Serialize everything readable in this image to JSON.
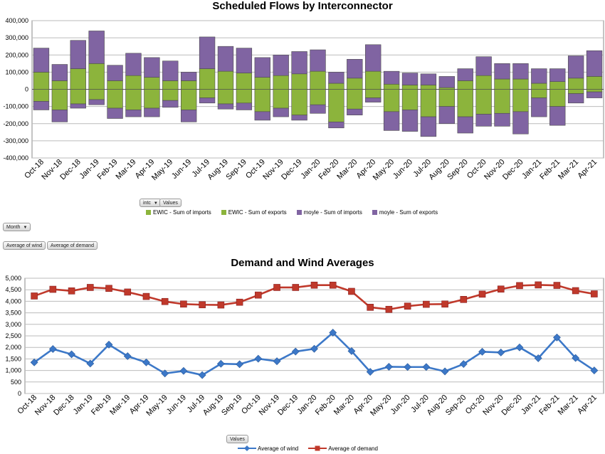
{
  "charts": {
    "flows": {
      "title": "Scheduled Flows by Interconnector",
      "filter_buttons": {
        "intc": "intc",
        "values": "Values"
      },
      "axis_button": "Month",
      "legend": [
        {
          "label": "EWIC - Sum of imports",
          "color": "#8cb43c"
        },
        {
          "label": "EWIC - Sum of exports",
          "color": "#8cb43c"
        },
        {
          "label": "moyle - Sum of imports",
          "color": "#8064a2"
        },
        {
          "label": "moyle - Sum of exports",
          "color": "#8064a2"
        }
      ]
    },
    "demand": {
      "title": "Demand and Wind Averages",
      "pills": {
        "wind": "Average of wind",
        "demand": "Average of demand",
        "values": "Values"
      },
      "legend": [
        {
          "label": "Average of wind",
          "color": "#3c78c8"
        },
        {
          "label": "Average of demand",
          "color": "#c0392b"
        }
      ]
    }
  },
  "chart_data": [
    {
      "type": "bar",
      "title": "Scheduled Flows by Interconnector",
      "stacked": true,
      "categories": [
        "Oct-18",
        "Nov-18",
        "Dec-18",
        "Jan-19",
        "Feb-19",
        "Mar-19",
        "Apr-19",
        "May-19",
        "Jun-19",
        "Jul-19",
        "Aug-19",
        "Sep-19",
        "Oct-19",
        "Nov-19",
        "Dec-19",
        "Jan-20",
        "Feb-20",
        "Mar-20",
        "Apr-20",
        "May-20",
        "Jun-20",
        "Jul-20",
        "Aug-20",
        "Sep-20",
        "Oct-20",
        "Nov-20",
        "Dec-20",
        "Jan-21",
        "Feb-21",
        "Mar-21",
        "Apr-21"
      ],
      "ylim": [
        -400000,
        400000
      ],
      "yticks": [
        400000,
        300000,
        200000,
        100000,
        0,
        -100000,
        -200000,
        -300000,
        -400000
      ],
      "ytick_labels": [
        "400,000",
        "300,000",
        "200,000",
        "100,000",
        "0",
        "-100,000",
        "-200,000",
        "-300,000",
        "-400,000"
      ],
      "grid": true,
      "series": [
        {
          "name": "EWIC - Sum of imports",
          "color": "#8cb43c",
          "values": [
            100000,
            50000,
            120000,
            150000,
            50000,
            80000,
            70000,
            50000,
            50000,
            120000,
            105000,
            95000,
            70000,
            80000,
            90000,
            105000,
            35000,
            65000,
            105000,
            30000,
            25000,
            25000,
            10000,
            50000,
            80000,
            60000,
            60000,
            35000,
            45000,
            65000,
            75000
          ]
        },
        {
          "name": "moyle - Sum of imports",
          "color": "#8064a2",
          "values": [
            140000,
            95000,
            165000,
            190000,
            90000,
            130000,
            115000,
            115000,
            50000,
            185000,
            145000,
            145000,
            115000,
            120000,
            130000,
            125000,
            65000,
            110000,
            155000,
            75000,
            70000,
            65000,
            65000,
            70000,
            110000,
            90000,
            90000,
            85000,
            75000,
            130000,
            150000
          ]
        },
        {
          "name": "EWIC - Sum of exports",
          "color": "#8cb43c",
          "values": [
            -70000,
            -120000,
            -85000,
            -60000,
            -110000,
            -120000,
            -110000,
            -65000,
            -120000,
            -50000,
            -85000,
            -80000,
            -130000,
            -110000,
            -150000,
            -90000,
            -190000,
            -115000,
            -50000,
            -130000,
            -120000,
            -160000,
            -100000,
            -160000,
            -145000,
            -140000,
            -130000,
            -50000,
            -100000,
            -25000,
            -15000
          ]
        },
        {
          "name": "moyle - Sum of exports",
          "color": "#8064a2",
          "values": [
            -50000,
            -70000,
            -25000,
            -30000,
            -60000,
            -40000,
            -50000,
            -40000,
            -70000,
            -30000,
            -30000,
            -40000,
            -50000,
            -50000,
            -30000,
            -50000,
            -35000,
            -35000,
            -25000,
            -110000,
            -125000,
            -115000,
            -100000,
            -95000,
            -70000,
            -75000,
            -130000,
            -110000,
            -110000,
            -55000,
            -35000
          ]
        }
      ]
    },
    {
      "type": "line",
      "title": "Demand and Wind Averages",
      "categories": [
        "Oct-18",
        "Nov-18",
        "Dec-18",
        "Jan-19",
        "Feb-19",
        "Mar-19",
        "Apr-19",
        "May-19",
        "Jun-19",
        "Jul-19",
        "Aug-19",
        "Sep-19",
        "Oct-19",
        "Nov-19",
        "Dec-19",
        "Jan-20",
        "Feb-20",
        "Mar-20",
        "Apr-20",
        "May-20",
        "Jun-20",
        "Jul-20",
        "Aug-20",
        "Sep-20",
        "Oct-20",
        "Nov-20",
        "Dec-20",
        "Jan-21",
        "Feb-21",
        "Mar-21",
        "Apr-21"
      ],
      "ylim": [
        0,
        5000
      ],
      "yticks": [
        5000,
        4500,
        4000,
        3500,
        3000,
        2500,
        2000,
        1500,
        1000,
        500,
        0
      ],
      "ytick_labels": [
        "5,000",
        "4,500",
        "4,000",
        "3,500",
        "3,000",
        "2,500",
        "2,000",
        "1,500",
        "1,000",
        "500",
        "0"
      ],
      "grid": true,
      "series": [
        {
          "name": "Average of wind",
          "color": "#3c78c8",
          "marker": "diamond",
          "values": [
            1350,
            1930,
            1700,
            1300,
            2120,
            1620,
            1350,
            870,
            980,
            800,
            1290,
            1270,
            1510,
            1400,
            1820,
            1940,
            2640,
            1840,
            940,
            1160,
            1150,
            1150,
            960,
            1280,
            1810,
            1780,
            2000,
            1530,
            2430,
            1540,
            1000
          ]
        },
        {
          "name": "Average of demand",
          "color": "#c0392b",
          "marker": "square",
          "values": [
            4230,
            4520,
            4450,
            4600,
            4560,
            4400,
            4210,
            3990,
            3880,
            3850,
            3840,
            3960,
            4270,
            4600,
            4600,
            4700,
            4700,
            4430,
            3740,
            3650,
            3790,
            3870,
            3880,
            4080,
            4310,
            4530,
            4680,
            4710,
            4690,
            4460,
            4320
          ]
        }
      ]
    }
  ]
}
